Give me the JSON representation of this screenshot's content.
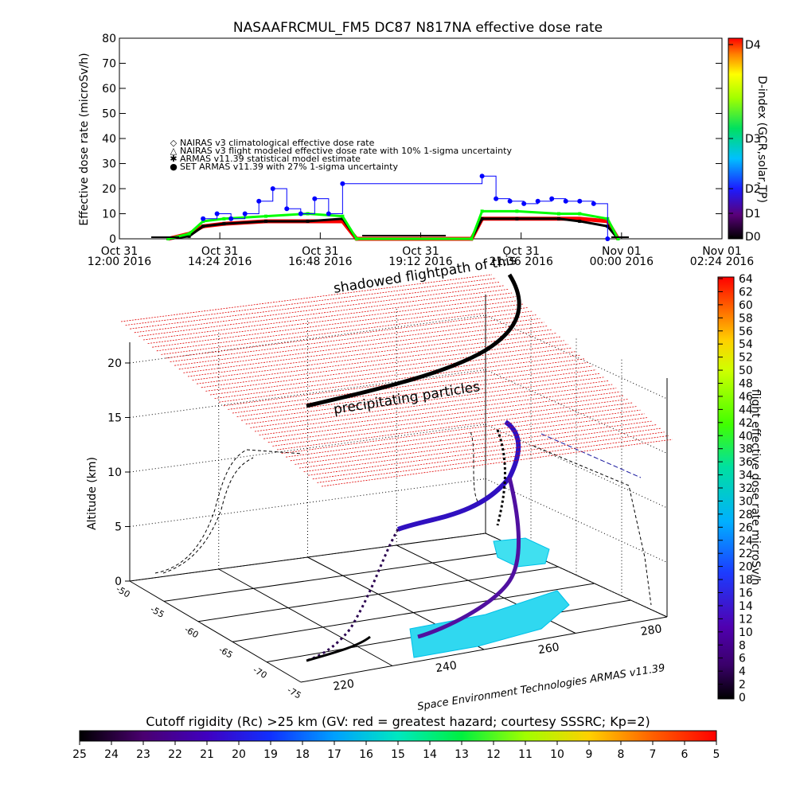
{
  "chart_data": [
    {
      "type": "line",
      "title": "NASAAFRCMUL_FM5 DC87 N817NA effective dose rate",
      "ylabel": "Effective dose rate (microSv/h)",
      "ylim": [
        0,
        80
      ],
      "yticks": [
        "0",
        "10",
        "20",
        "30",
        "40",
        "50",
        "60",
        "70",
        "80"
      ],
      "xlim": [
        "2016-10-31T12:00",
        "2016-11-01T02:24"
      ],
      "xticks": [
        {
          "line1": "Oct 31",
          "line2": "12:00 2016"
        },
        {
          "line1": "Oct 31",
          "line2": "14:24 2016"
        },
        {
          "line1": "Oct 31",
          "line2": "16:48 2016"
        },
        {
          "line1": "Oct 31",
          "line2": "19:12 2016"
        },
        {
          "line1": "Oct 31",
          "line2": "21:36 2016"
        },
        {
          "line1": "Nov 01",
          "line2": "00:00 2016"
        },
        {
          "line1": "Nov 01",
          "line2": "02:24 2016"
        }
      ],
      "legend": [
        {
          "marker": "◇",
          "color": "#ff0000",
          "label": "NAIRAS v3 climatological effective dose rate"
        },
        {
          "marker": "△",
          "color": "#000000",
          "label": "NAIRAS v3 flight modeled effective dose rate with 10% 1-sigma uncertainty"
        },
        {
          "marker": "✱",
          "color": "#00ff00",
          "label": "ARMAS v11.39 statistical model estimate"
        },
        {
          "marker": "●",
          "color": "#0000ff",
          "label": "SET ARMAS v11.39 with 27% 1-sigma uncertainty"
        }
      ],
      "series": [
        {
          "name": "NAIRAS v3 climatological effective dose rate",
          "color": "#ff0000",
          "x": [
            "2016-10-31T13:10",
            "2016-10-31T13:40",
            "2016-10-31T14:00",
            "2016-10-31T14:30",
            "2016-10-31T15:30",
            "2016-10-31T16:30",
            "2016-10-31T17:20",
            "2016-10-31T17:40",
            "2016-10-31T20:25",
            "2016-10-31T20:40",
            "2016-10-31T21:30",
            "2016-10-31T22:30",
            "2016-10-31T23:00",
            "2016-10-31T23:40",
            "2016-10-31T23:55"
          ],
          "y": [
            0,
            2,
            5,
            6,
            7,
            7,
            7,
            0,
            0,
            8,
            8,
            8,
            8,
            7,
            0
          ]
        },
        {
          "name": "NAIRAS v3 flight modeled effective dose rate with 10% 1-sigma uncertainty",
          "color": "#000000",
          "x": [
            "2016-10-31T13:10",
            "2016-10-31T13:40",
            "2016-10-31T14:00",
            "2016-10-31T14:30",
            "2016-10-31T15:30",
            "2016-10-31T16:30",
            "2016-10-31T17:20",
            "2016-10-31T17:40",
            "2016-10-31T20:25",
            "2016-10-31T20:40",
            "2016-10-31T21:30",
            "2016-10-31T22:30",
            "2016-10-31T23:00",
            "2016-10-31T23:40",
            "2016-10-31T23:55"
          ],
          "y": [
            0,
            1,
            5,
            6,
            7,
            7,
            8,
            0,
            0,
            8,
            8,
            8,
            7,
            5,
            0
          ]
        },
        {
          "name": "ARMAS v11.39 statistical model estimate",
          "color": "#00ff00",
          "x": [
            "2016-10-31T13:10",
            "2016-10-31T13:40",
            "2016-10-31T14:00",
            "2016-10-31T14:30",
            "2016-10-31T15:30",
            "2016-10-31T16:30",
            "2016-10-31T17:20",
            "2016-10-31T17:40",
            "2016-10-31T20:25",
            "2016-10-31T20:40",
            "2016-10-31T21:30",
            "2016-10-31T22:30",
            "2016-10-31T23:00",
            "2016-10-31T23:40",
            "2016-10-31T23:55"
          ],
          "y": [
            0,
            2,
            7,
            8,
            9,
            10,
            9,
            0,
            0,
            11,
            11,
            10,
            10,
            8,
            0
          ]
        },
        {
          "name": "SET ARMAS v11.39 with 27% 1-sigma uncertainty",
          "color": "#0000ff",
          "x": [
            "2016-10-31T14:00",
            "2016-10-31T14:20",
            "2016-10-31T14:40",
            "2016-10-31T15:00",
            "2016-10-31T15:20",
            "2016-10-31T15:40",
            "2016-10-31T16:00",
            "2016-10-31T16:20",
            "2016-10-31T16:40",
            "2016-10-31T17:00",
            "2016-10-31T17:20",
            "2016-10-31T20:40",
            "2016-10-31T21:00",
            "2016-10-31T21:20",
            "2016-10-31T21:40",
            "2016-10-31T22:00",
            "2016-10-31T22:20",
            "2016-10-31T22:40",
            "2016-10-31T23:00",
            "2016-10-31T23:20",
            "2016-10-31T23:40"
          ],
          "y": [
            8,
            10,
            8,
            10,
            15,
            20,
            12,
            10,
            16,
            10,
            22,
            25,
            16,
            15,
            14,
            15,
            16,
            15,
            15,
            14,
            0
          ]
        }
      ],
      "right_colorbar": {
        "label": "D-index (GCR,solar,TP)",
        "ticks": [
          "D0",
          "D1",
          "D2",
          "D3",
          "D4"
        ]
      }
    },
    {
      "type": "scatter",
      "subtype": "3d-flight-track",
      "zlabel": "Altitude (km)",
      "zticks": [
        "0",
        "5",
        "10",
        "15",
        "20"
      ],
      "lat_ticks": [
        "-50",
        "-55",
        "-60",
        "-65",
        "-70",
        "-75"
      ],
      "lon_ticks": [
        "220",
        "240",
        "260",
        "280"
      ],
      "annotations": [
        "shadowed flightpath of this",
        "precipitating particles"
      ],
      "credit": "Space Environment Technologies ARMAS v11.39",
      "right_colorbar": {
        "label": "flight effective dose rate microSv/h",
        "ticks": [
          "0",
          "2",
          "4",
          "6",
          "8",
          "10",
          "12",
          "14",
          "16",
          "18",
          "20",
          "22",
          "24",
          "26",
          "28",
          "30",
          "32",
          "34",
          "36",
          "38",
          "40",
          "42",
          "44",
          "46",
          "48",
          "50",
          "52",
          "54",
          "56",
          "58",
          "60",
          "62",
          "64"
        ]
      },
      "bottom_colorbar": {
        "label": "Cutoff rigidity (Rc) >25 km (GV: red = greatest hazard; courtesy SSSRC; Kp=2)",
        "ticks": [
          "25",
          "24",
          "23",
          "22",
          "21",
          "20",
          "19",
          "18",
          "17",
          "16",
          "15",
          "14",
          "13",
          "12",
          "11",
          "10",
          "9",
          "8",
          "7",
          "6",
          "5"
        ]
      }
    }
  ]
}
